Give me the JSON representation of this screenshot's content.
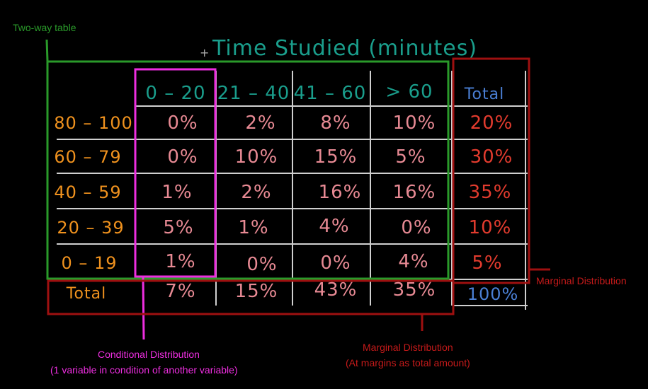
{
  "title": "Time Studied (minutes)",
  "columns": [
    "0 – 20",
    "21 – 40",
    "41 – 60",
    "> 60",
    "Total"
  ],
  "rows": [
    {
      "label": "80 – 100",
      "cells": [
        "0%",
        "2%",
        "8%",
        "10%"
      ],
      "total": "20%"
    },
    {
      "label": "60 – 79",
      "cells": [
        "0%",
        "10%",
        "15%",
        "5%"
      ],
      "total": "30%"
    },
    {
      "label": "40 – 59",
      "cells": [
        "1%",
        "2%",
        "16%",
        "16%"
      ],
      "total": "35%"
    },
    {
      "label": "20 – 39",
      "cells": [
        "5%",
        "1%",
        "4%",
        "0%"
      ],
      "total": "10%"
    },
    {
      "label": "0 – 19",
      "cells": [
        "1%",
        "0%",
        "0%",
        "4%"
      ],
      "total": "5%"
    }
  ],
  "total_row": {
    "label": "Total",
    "cells": [
      "7%",
      "15%",
      "43%",
      "35%"
    ],
    "grand_total": "100%"
  },
  "annotations": {
    "two_way": "Two-way table",
    "marginal_right": "Marginal Distribution",
    "conditional_line1": "Conditional Distribution",
    "conditional_line2": "(1 variable in condition of another variable)",
    "marginal_bottom_line1": "Marginal Distribution",
    "marginal_bottom_line2": "(At margins as total amount)"
  },
  "colors": {
    "title": "#1a9e8c",
    "header": "#1a9e8c",
    "total_header": "#4a7fd4",
    "row_label": "#f0921e",
    "cell": "#e88a94",
    "total_col": "#e23b2e",
    "grand_total": "#4a7fd4",
    "grid": "#cfcfcf",
    "green_box": "#2a9a2a",
    "magenta_box": "#ee2ee0",
    "red_box": "#9e1010"
  }
}
